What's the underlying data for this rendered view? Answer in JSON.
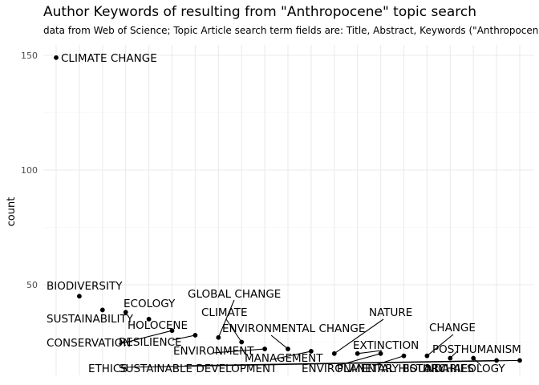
{
  "chart_data": {
    "type": "scatter",
    "title": "Author Keywords of resulting from \"Anthropocene\" topic search",
    "subtitle": "data from Web of Science; Topic Article search term fields are: Title, Abstract, Keywords (\"Anthropocene\"",
    "xlabel": "",
    "ylabel": "count",
    "ylim": [
      0,
      152
    ],
    "y_ticks": [
      50,
      100,
      150
    ],
    "x_ticks": [],
    "grid": true,
    "legend": "none",
    "colors": {
      "point": "#000000",
      "grid": "#ebebeb",
      "text": "#000000",
      "tick_text": "#4d4d4d"
    },
    "points": [
      {
        "x": 1,
        "y": 149,
        "label": "CLIMATE CHANGE"
      },
      {
        "x": 2,
        "y": 45,
        "label": "BIODIVERSITY"
      },
      {
        "x": 3,
        "y": 39,
        "label": "SUSTAINABILITY"
      },
      {
        "x": 4,
        "y": 38,
        "label": "ECOLOGY"
      },
      {
        "x": 5,
        "y": 35,
        "label": "HOLOCENE"
      },
      {
        "x": 6,
        "y": 30,
        "label": "CONSERVATION"
      },
      {
        "x": 7,
        "y": 28,
        "label": "RESILIENCE"
      },
      {
        "x": 8,
        "y": 27,
        "label": "GLOBAL CHANGE"
      },
      {
        "x": 9,
        "y": 25,
        "label": "CLIMATE"
      },
      {
        "x": 10,
        "y": 22,
        "label": "ENVIRONMENT"
      },
      {
        "x": 11,
        "y": 22,
        "label": "ENVIRONMENTAL CHANGE"
      },
      {
        "x": 12,
        "y": 21,
        "label": "MANAGEMENT"
      },
      {
        "x": 13,
        "y": 20,
        "label": "NATURE"
      },
      {
        "x": 14,
        "y": 20,
        "label": "EXTINCTION"
      },
      {
        "x": 15,
        "y": 20,
        "label": "ENVIRONMENTAL HISTORY"
      },
      {
        "x": 16,
        "y": 19,
        "label": "PLANETARY BOUNDARIES"
      },
      {
        "x": 17,
        "y": 19,
        "label": "CHANGE"
      },
      {
        "x": 18,
        "y": 18,
        "label": "POSTHUMANISM"
      },
      {
        "x": 19,
        "y": 18,
        "label": "ARCHAEOLOGY"
      },
      {
        "x": 20,
        "y": 17,
        "label": "SUSTAINABLE DEVELOPMENT"
      },
      {
        "x": 21,
        "y": 17,
        "label": "ETHICS"
      }
    ]
  }
}
